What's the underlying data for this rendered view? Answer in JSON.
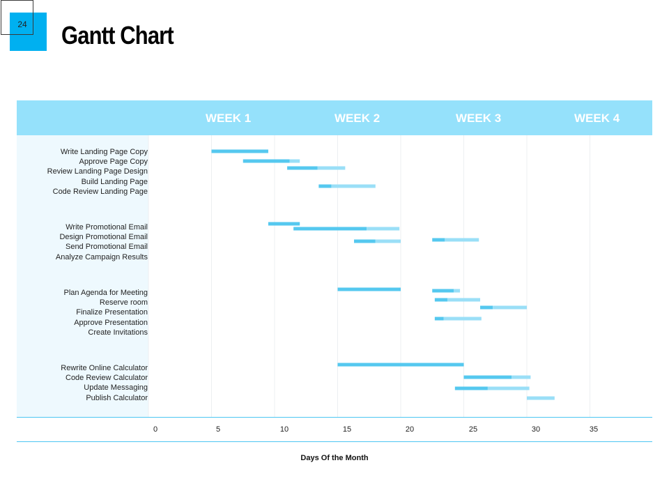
{
  "slide": {
    "number": "24",
    "title": "Gantt Chart"
  },
  "colors": {
    "accent": "#00b0f0",
    "header": "#95e1fb",
    "bar_done": "#55c8ef",
    "bar_remaining": "#9adff7",
    "label_panel": "#eef9fe"
  },
  "chart_data": {
    "type": "bar",
    "orientation": "horizontal-gantt",
    "title": "",
    "xlabel": "Days Of the Month",
    "ylabel": "",
    "xlim": [
      0,
      35
    ],
    "x_ticks": [
      "0",
      "5",
      "10",
      "15",
      "20",
      "25",
      "30",
      "35"
    ],
    "weeks": [
      "WEEK 1",
      "WEEK 2",
      "WEEK 3",
      "WEEK 4"
    ],
    "grid": true,
    "groups": [
      {
        "tasks": [
          {
            "name": "Write Landing Page Copy",
            "start": 5.0,
            "done": 4.5,
            "remaining": 0.0
          },
          {
            "name": "Approve Page Copy",
            "start": 7.5,
            "done": 3.7,
            "remaining": 0.8
          },
          {
            "name": "Review Landing Page Design",
            "start": 11.0,
            "done": 2.4,
            "remaining": 2.2
          },
          {
            "name": "Build Landing Page",
            "start": 13.5,
            "done": 1.0,
            "remaining": 3.5
          },
          {
            "name": "Code Review Landing Page",
            "start": null,
            "done": 0,
            "remaining": 0
          }
        ]
      },
      {
        "tasks": [
          {
            "name": "Write Promotional Email",
            "start": 9.5,
            "done": 2.5,
            "remaining": 0.0
          },
          {
            "name": "Design Promotional Email",
            "start": 11.5,
            "done": 5.8,
            "remaining": 2.6
          },
          {
            "name": "Send Promotional Email",
            "start": 16.3,
            "done": 1.7,
            "remaining": 2.0
          },
          {
            "name": "Analyze  Campaign Results",
            "start": null,
            "done": 0,
            "remaining": 0
          }
        ]
      },
      {
        "tasks": [
          {
            "name": "Plan Agenda for Meeting",
            "start": 15.0,
            "done": 5.0,
            "remaining": 0.0
          },
          {
            "name": "Reserve room",
            "start": null,
            "done": 0,
            "remaining": 0
          },
          {
            "name": "Finalize Presentation",
            "start": null,
            "done": 0,
            "remaining": 0
          },
          {
            "name": "Approve Presentation",
            "start": null,
            "done": 0,
            "remaining": 0
          },
          {
            "name": "Create Invitations",
            "start": null,
            "done": 0,
            "remaining": 0
          }
        ]
      },
      {
        "tasks": [
          {
            "name": "Rewrite Online Calculator",
            "start": 15.0,
            "done": 10.0,
            "remaining": 0.0
          },
          {
            "name": "Code Review Calculator",
            "start": 25.0,
            "done": 3.8,
            "remaining": 1.5
          },
          {
            "name": "Update Messaging",
            "start": 24.3,
            "done": 2.6,
            "remaining": 3.3
          },
          {
            "name": "Publish Calculator",
            "start": 30.0,
            "done": 0.0,
            "remaining": 2.2
          }
        ]
      }
    ],
    "extra_bars": [
      {
        "start": 22.5,
        "done": 1.0,
        "remaining": 2.7,
        "y": 344
      },
      {
        "start": 22.5,
        "done": 1.7,
        "remaining": 0.5,
        "y": 417
      },
      {
        "start": 22.7,
        "done": 1.0,
        "remaining": 2.6,
        "y": 430
      },
      {
        "start": 26.3,
        "done": 1.0,
        "remaining": 2.7,
        "y": 441
      },
      {
        "start": 22.7,
        "done": 0.7,
        "remaining": 3.0,
        "y": 457
      }
    ]
  }
}
